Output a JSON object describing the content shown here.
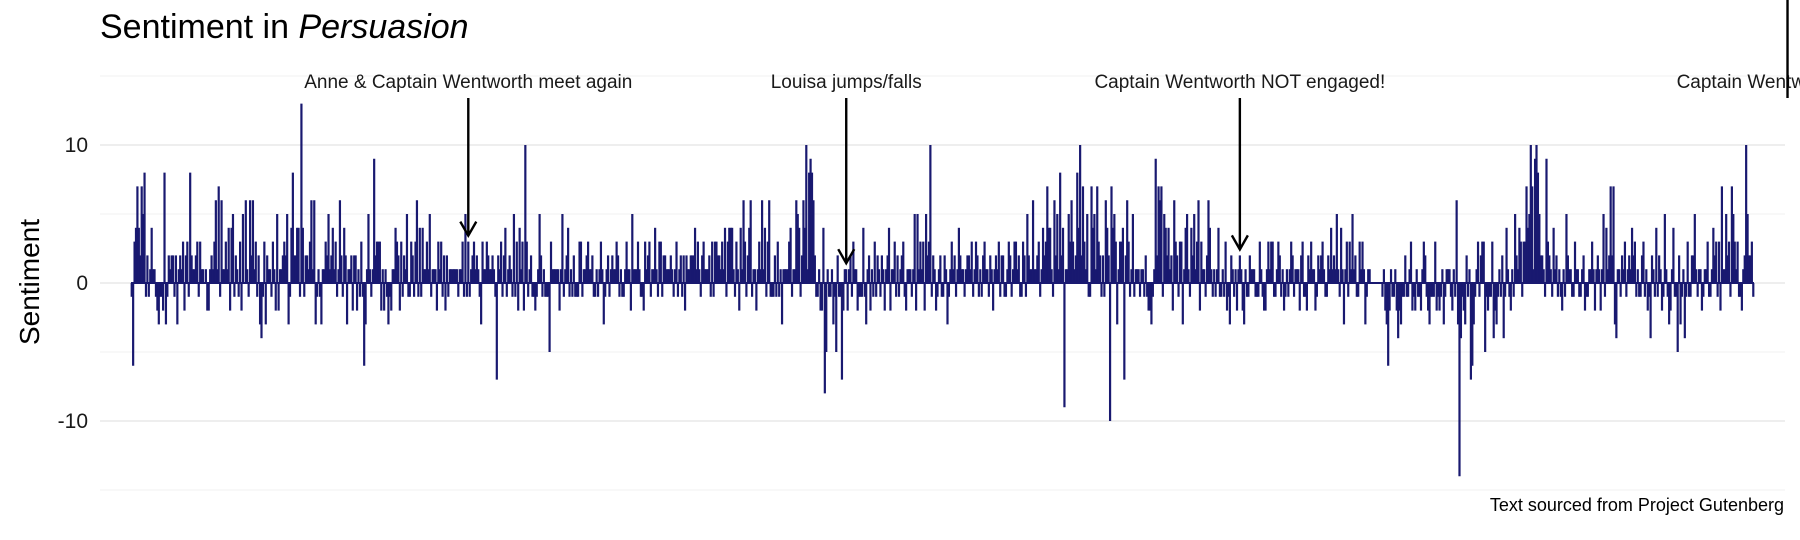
{
  "chart_data": {
    "type": "bar",
    "title_prefix": "Sentiment in ",
    "title_italic": "Persuasion",
    "ylabel": "Sentiment",
    "xlabel": "",
    "caption": "Text sourced from Project Gutenberg",
    "ylim": [
      -15,
      15
    ],
    "yticks": [
      10,
      0,
      -10
    ],
    "ytick_labels": [
      "10",
      "0",
      "-10"
    ],
    "grid": true,
    "bar_color": "#191970",
    "values": [
      -1,
      -6,
      3,
      4,
      7,
      4,
      2,
      7,
      5,
      8,
      -1,
      2,
      -1,
      1,
      4,
      1,
      1,
      -1,
      -2,
      -3,
      -1,
      -1,
      -2,
      8,
      -3,
      -1,
      2,
      1,
      2,
      2,
      -1,
      2,
      -3,
      1,
      2,
      1,
      3,
      -2,
      2,
      3,
      -1,
      8,
      2,
      1,
      1,
      2,
      3,
      -1,
      3,
      1,
      1,
      0,
      1,
      -2,
      -2,
      1,
      2,
      1,
      3,
      6,
      1,
      7,
      -1,
      6,
      1,
      1,
      3,
      1,
      4,
      -2,
      4,
      5,
      -1,
      2,
      1,
      -1,
      3,
      -2,
      5,
      0,
      6,
      1,
      -1,
      6,
      2,
      6,
      1,
      3,
      -1,
      2,
      -3,
      -4,
      -1,
      3,
      -3,
      2,
      1,
      1,
      -1,
      3,
      1,
      -2,
      5,
      -2,
      1,
      1,
      2,
      3,
      2,
      5,
      -3,
      -1,
      4,
      8,
      2,
      2,
      4,
      4,
      -1,
      13,
      4,
      -1,
      2,
      2,
      1,
      3,
      6,
      1,
      6,
      -3,
      -1,
      1,
      -1,
      -3,
      1,
      1,
      3,
      2,
      5,
      1,
      2,
      4,
      1,
      3,
      -1,
      1,
      6,
      2,
      -1,
      4,
      2,
      -3,
      1,
      1,
      2,
      -2,
      2,
      2,
      -2,
      1,
      -1,
      3,
      -1,
      -6,
      -3,
      1,
      5,
      1,
      -1,
      1,
      9,
      2,
      3,
      3,
      3,
      -2,
      1,
      -2,
      1,
      -1,
      -3,
      -1,
      -2,
      1,
      1,
      4,
      3,
      2,
      -2,
      3,
      -1,
      2,
      1,
      5,
      -1,
      -1,
      3,
      2,
      -1,
      3,
      6,
      -1,
      4,
      -1,
      4,
      1,
      1,
      3,
      1,
      5,
      -1,
      1,
      1,
      1,
      -2,
      3,
      1,
      3,
      -1,
      2,
      -2,
      2,
      -1,
      1,
      1,
      1,
      1,
      1,
      1,
      -1,
      1,
      1,
      3,
      -1,
      5,
      -1,
      3,
      -1,
      1,
      2,
      3,
      1,
      2,
      1,
      -1,
      -3,
      3,
      1,
      1,
      3,
      2,
      1,
      1,
      2,
      1,
      -1,
      -7,
      2,
      1,
      3,
      -1,
      2,
      4,
      -1,
      1,
      2,
      1,
      -1,
      5,
      -1,
      3,
      -2,
      4,
      1,
      3,
      -2,
      10,
      3,
      -1,
      1,
      2,
      -1,
      -1,
      -2,
      -1,
      1,
      5,
      2,
      -1,
      1,
      -1,
      -1,
      -1,
      -5,
      3,
      1,
      1,
      1,
      1,
      1,
      -2,
      1,
      5,
      -1,
      1,
      2,
      4,
      -1,
      1,
      -1,
      2,
      -1,
      -1,
      -1,
      3,
      3,
      -1,
      1,
      1,
      2,
      3,
      1,
      1,
      2,
      -1,
      -1,
      1,
      -1,
      1,
      3,
      1,
      -3,
      -1,
      1,
      2,
      -1,
      1,
      2,
      1,
      1,
      3,
      2,
      -1,
      1,
      -1,
      -1,
      1,
      3,
      1,
      1,
      -2,
      5,
      1,
      1,
      1,
      3,
      1,
      -1,
      -1,
      -2,
      3,
      1,
      2,
      3,
      -1,
      1,
      1,
      4,
      1,
      -1,
      3,
      3,
      -1,
      2,
      2,
      1,
      1,
      1,
      2,
      1,
      -1,
      1,
      3,
      -1,
      1,
      2,
      -1,
      2,
      -2,
      2,
      1,
      1,
      2,
      2,
      2,
      4,
      1,
      3,
      1,
      -1,
      2,
      3,
      1,
      1,
      1,
      2,
      -1,
      3,
      -1,
      3,
      3,
      2,
      2,
      1,
      3,
      1,
      4,
      -1,
      3,
      4,
      4,
      4,
      1,
      -1,
      3,
      1,
      -2,
      4,
      1,
      6,
      3,
      -1,
      2,
      4,
      6,
      -1,
      1,
      1,
      -2,
      1,
      3,
      1,
      6,
      1,
      4,
      -1,
      3,
      6,
      -1,
      -1,
      -1,
      2,
      -1,
      3,
      -1,
      1,
      -3,
      1,
      1,
      1,
      1,
      3,
      4,
      -1,
      1,
      1,
      6,
      5,
      4,
      -1,
      2,
      6,
      4,
      10,
      1,
      8,
      9,
      8,
      6,
      2,
      -1,
      -1,
      1,
      -2,
      -2,
      4,
      -8,
      -5,
      1,
      -1,
      -1,
      1,
      -3,
      -1,
      -5,
      2,
      -1,
      -1,
      -7,
      -2,
      1,
      1,
      -2,
      1,
      2,
      -1,
      3,
      1,
      1,
      -2,
      -1,
      -1,
      -1,
      4,
      -1,
      -3,
      1,
      2,
      -2,
      1,
      -1,
      3,
      -1,
      2,
      1,
      -1,
      2,
      1,
      -2,
      1,
      2,
      4,
      -2,
      1,
      1,
      3,
      -1,
      2,
      -1,
      1,
      2,
      3,
      -1,
      -2,
      1,
      1,
      1,
      -1,
      1,
      5,
      -2,
      5,
      1,
      3,
      1,
      3,
      -2,
      5,
      2,
      3,
      10,
      -1,
      2,
      1,
      -2,
      -1,
      1,
      2,
      -1,
      -1,
      2,
      1,
      -3,
      -1,
      1,
      3,
      1,
      2,
      -1,
      1,
      4,
      2,
      1,
      1,
      -1,
      1,
      2,
      2,
      1,
      3,
      -1,
      1,
      3,
      2,
      -1,
      1,
      -1,
      2,
      3,
      1,
      1,
      -1,
      2,
      1,
      -2,
      1,
      2,
      1,
      3,
      -1,
      2,
      2,
      -1,
      -1,
      1,
      3,
      2,
      -1,
      1,
      3,
      3,
      1,
      2,
      -1,
      -1,
      3,
      2,
      -1,
      5,
      2,
      1,
      1,
      6,
      1,
      1,
      2,
      3,
      -1,
      1,
      4,
      2,
      3,
      7,
      4,
      4,
      1,
      -1,
      6,
      2,
      5,
      1,
      8,
      2,
      4,
      -9,
      1,
      1,
      5,
      3,
      6,
      3,
      1,
      2,
      8,
      4,
      10,
      2,
      7,
      3,
      1,
      5,
      -1,
      -1,
      7,
      4,
      5,
      1,
      7,
      3,
      2,
      -1,
      2,
      -1,
      6,
      4,
      2,
      -10,
      7,
      4,
      5,
      3,
      -3,
      1,
      3,
      3,
      4,
      -7,
      2,
      6,
      3,
      -1,
      1,
      5,
      -1,
      1,
      1,
      1,
      -1,
      1,
      1,
      -1,
      2,
      -1,
      -2,
      -2,
      -3,
      -1,
      1,
      9,
      2,
      7,
      6,
      7,
      -1,
      5,
      4,
      2,
      4,
      1,
      2,
      -2,
      6,
      3,
      2,
      -1,
      3,
      3,
      -3,
      1,
      4,
      5,
      1,
      -1,
      4,
      2,
      5,
      1,
      3,
      6,
      -2,
      3,
      1,
      1,
      -1,
      2,
      6,
      4,
      1,
      -1,
      1,
      -1,
      1,
      4,
      -1,
      -1,
      1,
      -1,
      3,
      -2,
      -1,
      -3,
      2,
      1,
      -1,
      1,
      -2,
      1,
      2,
      1,
      -2,
      -3,
      1,
      -1,
      -1,
      2,
      1,
      1,
      1,
      -1,
      -1,
      -1,
      3,
      1,
      -1,
      -2,
      -2,
      1,
      3,
      1,
      3,
      3,
      -1,
      -1,
      1,
      3,
      2,
      -1,
      1,
      -2,
      -1,
      1,
      -1,
      1,
      3,
      2,
      -1,
      1,
      1,
      1,
      -2,
      2,
      3,
      -1,
      -1,
      -2,
      2,
      1,
      3,
      1,
      1,
      -2,
      -1,
      2,
      1,
      2,
      3,
      1,
      -1,
      -1,
      2,
      1,
      4,
      1,
      2,
      1,
      5,
      1,
      -1,
      4,
      1,
      -3,
      1,
      3,
      -1,
      3,
      1,
      5,
      1,
      2,
      -1,
      -1,
      3,
      1,
      3,
      1,
      -3,
      -1,
      1,
      1,
      0,
      0,
      0,
      0,
      0,
      0,
      0,
      0,
      -1,
      1,
      -2,
      -3,
      -6,
      -2,
      1,
      -1,
      -1,
      1,
      -2,
      -4,
      -2,
      -3,
      -1,
      -1,
      2,
      -1,
      -1,
      1,
      3,
      -2,
      -1,
      -2,
      1,
      -1,
      -1,
      -2,
      1,
      3,
      2,
      -1,
      -2,
      -3,
      -1,
      -1,
      -1,
      3,
      -2,
      -1,
      -2,
      -1,
      1,
      -3,
      -1,
      1,
      1,
      1,
      -1,
      -2,
      1,
      -1,
      6,
      -3,
      -14,
      -4,
      -1,
      -2,
      -3,
      2,
      -1,
      1,
      -7,
      -6,
      -3,
      -1,
      1,
      3,
      -1,
      2,
      3,
      3,
      -5,
      -1,
      -2,
      -1,
      -1,
      3,
      -4,
      -2,
      -3,
      -1,
      1,
      -1,
      2,
      -4,
      -1,
      4,
      1,
      -1,
      -2,
      1,
      -1,
      5,
      2,
      1,
      4,
      3,
      -1,
      3,
      3,
      7,
      4,
      5,
      10,
      7,
      1,
      9,
      10,
      8,
      5,
      2,
      2,
      1,
      -1,
      9,
      3,
      2,
      1,
      -1,
      4,
      1,
      2,
      -1,
      1,
      -1,
      -2,
      1,
      -1,
      5,
      2,
      1,
      1,
      -1,
      -1,
      3,
      1,
      1,
      -1,
      -1,
      1,
      2,
      -2,
      -1,
      -1,
      1,
      1,
      3,
      1,
      -2,
      1,
      2,
      1,
      -2,
      1,
      5,
      -1,
      4,
      1,
      2,
      7,
      2,
      7,
      -3,
      -4,
      1,
      1,
      -1,
      2,
      1,
      3,
      -1,
      1,
      2,
      1,
      4,
      2,
      3,
      -1,
      1,
      -1,
      -1,
      2,
      3,
      -1,
      1,
      -2,
      -1,
      -4,
      2,
      1,
      -1,
      4,
      -1,
      2,
      1,
      -2,
      -1,
      5,
      1,
      -1,
      -3,
      -2,
      1,
      4,
      -1,
      -1,
      -5,
      2,
      -3,
      -1,
      1,
      -4,
      -1,
      3,
      -1,
      -1,
      2,
      2,
      5,
      1,
      -1,
      1,
      1,
      -2,
      -1,
      1,
      1,
      3,
      -1,
      -1,
      1,
      4,
      2,
      3,
      -1,
      3,
      -2,
      7,
      1,
      1,
      5,
      2,
      3,
      -1,
      7,
      5,
      3,
      1,
      3,
      -1,
      -1,
      -2,
      1,
      2,
      10,
      5,
      2,
      2,
      3,
      -1
    ]
  },
  "annotations": [
    {
      "label": "Anne & Captain Wentworth meet again",
      "x_index": 236
    },
    {
      "label": "Louisa jumps/falls",
      "x_index": 501
    },
    {
      "label": "Captain Wentworth NOT engaged!",
      "x_index": 777
    },
    {
      "label": "Captain Wentworth's letter",
      "x_index": 1161
    }
  ]
}
